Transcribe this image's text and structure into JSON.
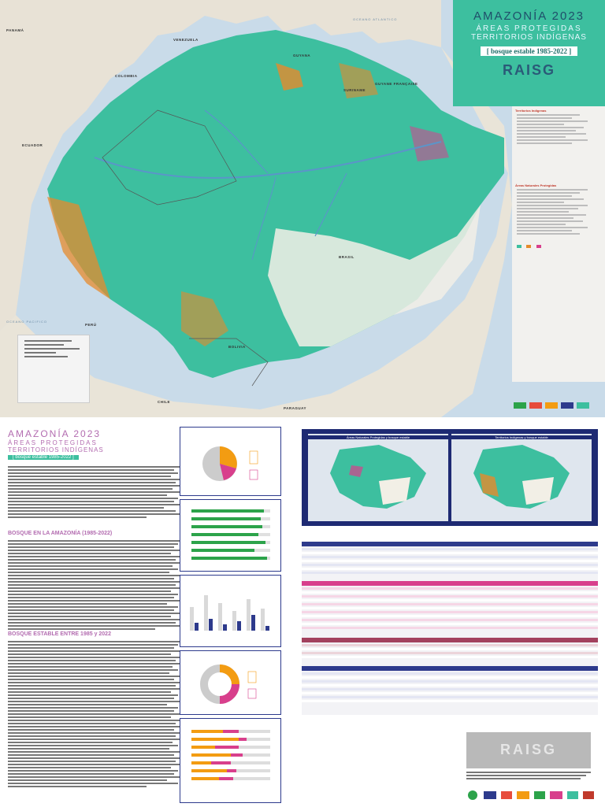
{
  "title": {
    "main": "AMAZONÍA 2023",
    "line2": "ÁREAS PROTEGIDAS",
    "line3": "TERRITORIOS INDÍGENAS",
    "badge": "[ bosque estable 1985-2022 ]",
    "org": "RAISG"
  },
  "map_labels": {
    "ocean_atlantic": "OCEANO ATLANTICO",
    "ocean_pacific": "OCEANO PACIFICO",
    "panama": "PANAMÁ",
    "venezuela": "VENEZUELA",
    "guyana": "GUYANA",
    "suriname": "SURINAME",
    "guyane": "GUYANE FRANÇAISE",
    "colombia": "COLOMBIA",
    "ecuador": "ECUADOR",
    "peru": "PERÚ",
    "brasil": "BRASIL",
    "bolivia": "BOLIVIA",
    "paraguay": "PARAGUAY",
    "chile": "CHILE"
  },
  "legend": {
    "heading_ti": "Territorios Indígenas",
    "heading_anp": "Áreas Naturales Protegidas"
  },
  "lower": {
    "title": "AMAZONÍA 2023",
    "subtitle1": "ÁREAS PROTEGIDAS",
    "subtitle2": "TERRITORIOS INDÍGENAS",
    "badge": "[ bosque estable 1985-2022 ]",
    "section1": "BOSQUE EN LA AMAZONÍA (1985-2022)",
    "section2": "BOSQUE ESTABLE ENTRE 1985 y 2022"
  },
  "maps": {
    "left_caption": "Áreas Naturales Protegidas y bosque estable",
    "right_caption": "Territorios Indígenas y bosque estable"
  },
  "raisg_box": "RAISG",
  "colors": {
    "forest": "#3dbf9f",
    "non_forest": "#f2efe6",
    "ti": "#e58b2c",
    "anp": "#d83f8c",
    "border": "#2d3a8c",
    "ocean": "#c9dbe9"
  }
}
